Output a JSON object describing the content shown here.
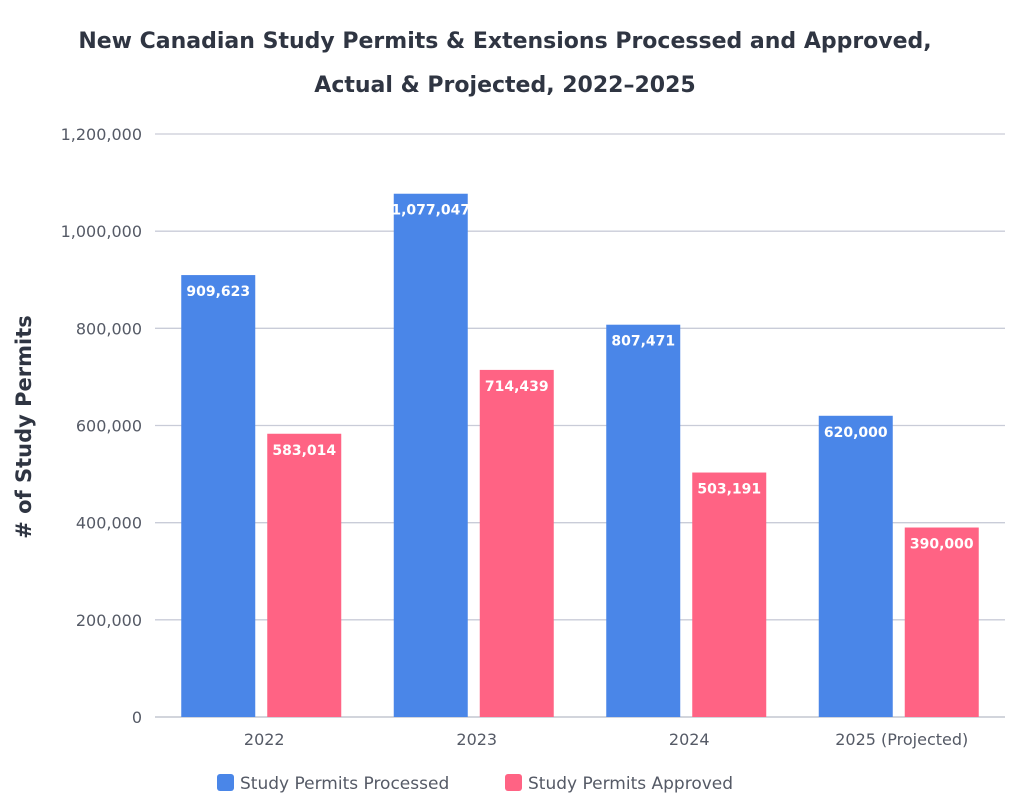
{
  "chart_data": {
    "type": "bar",
    "title_lines": [
      "New Canadian Study Permits & Extensions Processed and Approved,",
      "Actual & Projected, 2022–2025"
    ],
    "xlabel": "",
    "ylabel": "# of Study Permits",
    "categories": [
      "2022",
      "2023",
      "2024",
      "2025 (Projected)"
    ],
    "series": [
      {
        "name": "Study Permits Processed",
        "color": "#4a86e8",
        "values": [
          909623,
          1077047,
          807471,
          620000
        ],
        "labels": [
          "909,623",
          "1,077,047",
          "807,471",
          "620,000"
        ]
      },
      {
        "name": "Study Permits Approved",
        "color": "#ff6384",
        "values": [
          583014,
          714439,
          503191,
          390000
        ],
        "labels": [
          "583,014",
          "714,439",
          "503,191",
          "390,000"
        ]
      }
    ],
    "ylim": [
      0,
      1200000
    ],
    "yticks": [
      0,
      200000,
      400000,
      600000,
      800000,
      1000000,
      1200000
    ],
    "ytick_labels": [
      "0",
      "200,000",
      "400,000",
      "600,000",
      "800,000",
      "1,000,000",
      "1,200,000"
    ],
    "grid": true,
    "legend_position": "bottom-center"
  }
}
